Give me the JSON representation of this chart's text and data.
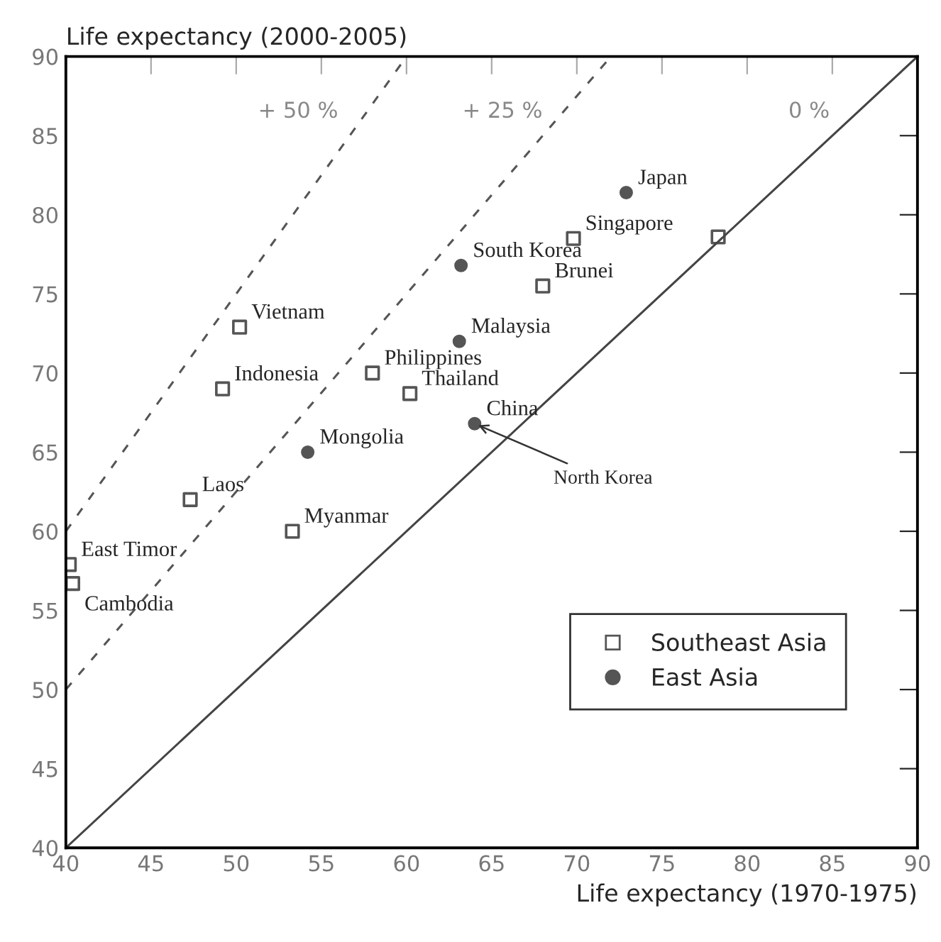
{
  "chart_data": {
    "type": "scatter",
    "xlabel": "Life expectancy (1970-1975)",
    "ylabel": "Life expectancy (2000-2005)",
    "xlim": [
      40,
      90
    ],
    "ylim": [
      40,
      90
    ],
    "xticks": [
      40,
      45,
      50,
      55,
      60,
      65,
      70,
      75,
      80,
      85,
      90
    ],
    "yticks": [
      40,
      45,
      50,
      55,
      60,
      65,
      70,
      75,
      80,
      85,
      90
    ],
    "grid": false,
    "legend": "bottom right",
    "series": [
      {
        "name": "+ 50 %",
        "type": "line",
        "line_style": "dashed",
        "color": "#555555",
        "x": [
          40,
          60
        ],
        "values": [
          60,
          90
        ]
      },
      {
        "name": "+ 25 %",
        "type": "line",
        "line_style": "dashed",
        "color": "#555555",
        "x": [
          40,
          72
        ],
        "values": [
          50,
          90
        ]
      },
      {
        "name": "0 %",
        "type": "line",
        "line_style": "solid",
        "color": "#444444",
        "x": [
          40,
          90
        ],
        "values": [
          40,
          90
        ]
      },
      {
        "name": "Southeast Asia",
        "marker": "square",
        "color": "#555555",
        "x": [
          50.2,
          49.2,
          58,
          60.2,
          69.8,
          78.3,
          68,
          47.3,
          53.3,
          40.2,
          40.4
        ],
        "values": [
          72.9,
          69,
          70,
          68.7,
          78.5,
          78.6,
          75.5,
          62,
          60,
          57.9,
          56.7
        ]
      },
      {
        "name": "East Asia",
        "marker": "circle",
        "color": "#555555",
        "x": [
          72.9,
          63.2,
          63.1,
          54.2,
          64
        ],
        "values": [
          81.4,
          76.8,
          72,
          65,
          66.8
        ]
      }
    ],
    "annotations": [
      {
        "text": "Vietnam",
        "x": 50.2,
        "y": 72.9
      },
      {
        "text": "Indonesia",
        "x": 49.2,
        "y": 69
      },
      {
        "text": "Philippines",
        "x": 58,
        "y": 70
      },
      {
        "text": "Thailand",
        "x": 60.2,
        "y": 68.7
      },
      {
        "text": "Singapore",
        "x": 69.8,
        "y": 78.5
      },
      {
        "text": "Brunei",
        "x": 68,
        "y": 75.5
      },
      {
        "text": "Laos",
        "x": 47.3,
        "y": 62
      },
      {
        "text": "Myanmar",
        "x": 53.3,
        "y": 60
      },
      {
        "text": "East Timor",
        "x": 40.2,
        "y": 57.9
      },
      {
        "text": "Cambodia",
        "x": 40.4,
        "y": 56.7
      },
      {
        "text": "Japan",
        "x": 72.9,
        "y": 81.4
      },
      {
        "text": "South Korea",
        "x": 63.2,
        "y": 76.8
      },
      {
        "text": "Malaysia",
        "x": 63.1,
        "y": 72
      },
      {
        "text": "Mongolia",
        "x": 54.2,
        "y": 65
      },
      {
        "text": "China",
        "x": 64,
        "y": 66.8
      },
      {
        "text": "North Korea",
        "x": 64,
        "y": 66.8
      }
    ]
  }
}
